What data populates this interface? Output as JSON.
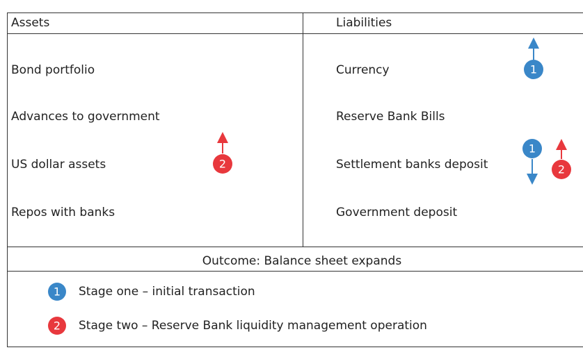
{
  "header": {
    "assets": "Assets",
    "liabilities": "Liabilities"
  },
  "assets": [
    "Bond portfolio",
    "Advances to government",
    "US dollar assets",
    "Repos with banks"
  ],
  "liabilities": [
    "Currency",
    "Reserve Bank Bills",
    "Settlement banks deposit",
    "Government deposit"
  ],
  "outcome": "Outcome: Balance sheet expands",
  "legend": [
    {
      "number": "1",
      "text": "Stage one – initial transaction"
    },
    {
      "number": "2",
      "text": "Stage two – Reserve Bank liquidity management operation"
    }
  ]
}
